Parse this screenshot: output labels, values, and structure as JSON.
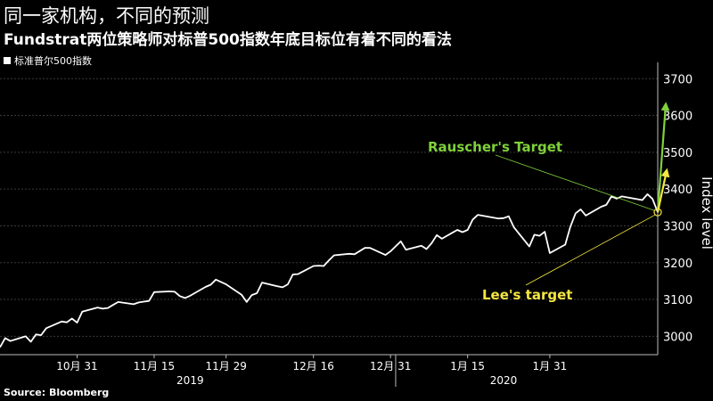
{
  "title": "同一家机构，不同的预测",
  "subtitle": "Fundstrat两位策略师对标普500指数年底目标位有着不同的看法",
  "legend_label": "标准普尔500指数",
  "source": "Source: Bloomberg",
  "colors": {
    "background": "#000000",
    "series": "#ffffff",
    "rauscher": "#7fd13b",
    "lee": "#f5e642"
  },
  "chart_data": {
    "type": "line",
    "ylabel": "Index level",
    "ylim": [
      2950,
      3720
    ],
    "yticks": [
      3000,
      3100,
      3200,
      3300,
      3400,
      3500,
      3600,
      3700
    ],
    "xlim": [
      "2019-10-16",
      "2020-02-21"
    ],
    "xticks": [
      {
        "date": "2019-10-31",
        "label": "10月 31"
      },
      {
        "date": "2019-11-15",
        "label": "11月 15"
      },
      {
        "date": "2019-11-29",
        "label": "11月 29"
      },
      {
        "date": "2019-12-16",
        "label": "12月 16"
      },
      {
        "date": "2019-12-31",
        "label": "12月 31"
      },
      {
        "date": "2020-01-15",
        "label": "1月 15"
      },
      {
        "date": "2020-01-31",
        "label": "1月 31"
      }
    ],
    "year_labels": [
      {
        "date": "2019-11-22",
        "label": "2019"
      },
      {
        "date": "2020-01-22",
        "label": "2020"
      }
    ],
    "year_separator": "2020-01-01",
    "grid": "horizontal",
    "axis_side": "right",
    "series": [
      {
        "x": [
          "2019-10-16",
          "2019-10-17",
          "2019-10-18",
          "2019-10-21",
          "2019-10-22",
          "2019-10-23",
          "2019-10-24",
          "2019-10-25",
          "2019-10-28",
          "2019-10-29",
          "2019-10-30",
          "2019-10-31",
          "2019-11-01",
          "2019-11-04",
          "2019-11-05",
          "2019-11-06",
          "2019-11-07",
          "2019-11-08",
          "2019-11-11",
          "2019-11-12",
          "2019-11-13",
          "2019-11-14",
          "2019-11-15",
          "2019-11-18",
          "2019-11-19",
          "2019-11-20",
          "2019-11-21",
          "2019-11-22",
          "2019-11-25",
          "2019-11-26",
          "2019-11-27",
          "2019-11-29",
          "2019-12-02",
          "2019-12-03",
          "2019-12-04",
          "2019-12-05",
          "2019-12-06",
          "2019-12-09",
          "2019-12-10",
          "2019-12-11",
          "2019-12-12",
          "2019-12-13",
          "2019-12-16",
          "2019-12-17",
          "2019-12-18",
          "2019-12-19",
          "2019-12-20",
          "2019-12-23",
          "2019-12-24",
          "2019-12-26",
          "2019-12-27",
          "2019-12-30",
          "2019-12-31",
          "2020-01-02",
          "2020-01-03",
          "2020-01-06",
          "2020-01-07",
          "2020-01-08",
          "2020-01-09",
          "2020-01-10",
          "2020-01-13",
          "2020-01-14",
          "2020-01-15",
          "2020-01-16",
          "2020-01-17",
          "2020-01-21",
          "2020-01-22",
          "2020-01-23",
          "2020-01-24",
          "2020-01-27",
          "2020-01-28",
          "2020-01-29",
          "2020-01-30",
          "2020-01-31",
          "2020-02-03",
          "2020-02-04",
          "2020-02-05",
          "2020-02-06",
          "2020-02-07",
          "2020-02-10",
          "2020-02-11",
          "2020-02-12",
          "2020-02-13",
          "2020-02-14",
          "2020-02-18",
          "2020-02-19",
          "2020-02-20",
          "2020-02-21"
        ],
        "values": [
          2970,
          2995,
          2987,
          3000,
          2985,
          3005,
          3003,
          3022,
          3040,
          3038,
          3048,
          3037,
          3067,
          3078,
          3075,
          3077,
          3085,
          3093,
          3087,
          3092,
          3094,
          3096,
          3120,
          3122,
          3121,
          3109,
          3104,
          3110,
          3134,
          3140,
          3154,
          3141,
          3113,
          3093,
          3112,
          3117,
          3146,
          3136,
          3133,
          3141,
          3168,
          3169,
          3191,
          3192,
          3191,
          3206,
          3220,
          3224,
          3223,
          3240,
          3240,
          3221,
          3231,
          3258,
          3235,
          3246,
          3237,
          3253,
          3275,
          3265,
          3289,
          3283,
          3289,
          3317,
          3330,
          3320,
          3321,
          3326,
          3296,
          3244,
          3276,
          3273,
          3284,
          3226,
          3249,
          3298,
          3334,
          3345,
          3328,
          3352,
          3357,
          3380,
          3374,
          3380,
          3370,
          3386,
          3373,
          3337
        ]
      }
    ],
    "annotations": [
      {
        "label": "Rauscher's Target",
        "target": 3630
      },
      {
        "label": "Lee's target",
        "target": 3450
      }
    ]
  }
}
